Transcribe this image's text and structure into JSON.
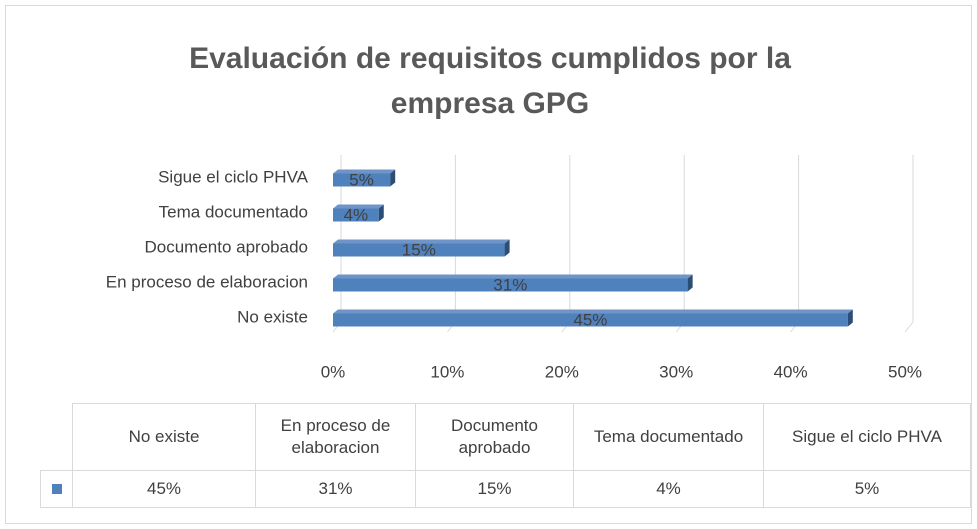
{
  "chart_data": {
    "type": "bar",
    "orientation": "horizontal",
    "title": "Evaluación de requisitos cumplidos por la empresa GPG",
    "categories": [
      "No existe",
      "En proceso de elaboracion",
      "Documento aprobado",
      "Tema documentado",
      "Sigue el ciclo PHVA"
    ],
    "values": [
      45,
      31,
      15,
      4,
      5
    ],
    "value_labels": [
      "45%",
      "31%",
      "15%",
      "4%",
      "5%"
    ],
    "color": "#4f81bd",
    "xlim": [
      0,
      50
    ],
    "xticks": [
      {
        "value": 0,
        "label": "0%"
      },
      {
        "value": 10,
        "label": "10%"
      },
      {
        "value": 20,
        "label": "20%"
      },
      {
        "value": 30,
        "label": "30%"
      },
      {
        "value": 40,
        "label": "40%"
      },
      {
        "value": 50,
        "label": "50%"
      }
    ],
    "grid": true,
    "data_table": true
  }
}
